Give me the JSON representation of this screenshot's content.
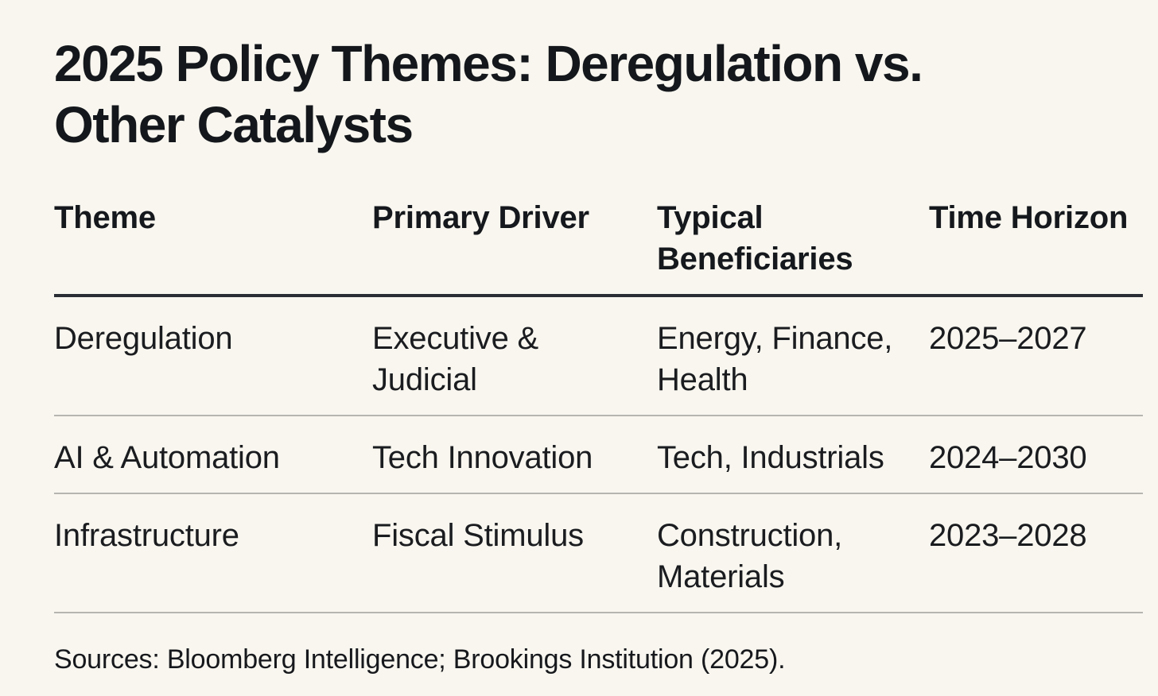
{
  "page": {
    "background_color": "#F8F6EF",
    "text_color": "#15181C",
    "header_rule_color": "#2A2D33",
    "row_rule_color": "#B7B5B0"
  },
  "chart_data": {
    "type": "table",
    "title": "2025 Policy Themes: Deregulation vs.\nOther Catalysts",
    "columns": [
      "Theme",
      "Primary Driver",
      "Typical\nBeneficiaries",
      "Time Horizon"
    ],
    "rows": [
      [
        "Deregulation",
        "Executive &\nJudicial",
        "Energy, Finance,\nHealth",
        "2025–2027"
      ],
      [
        "AI & Automation",
        "Tech Innovation",
        "Tech, Industrials",
        "2024–2030"
      ],
      [
        "Infrastructure",
        "Fiscal Stimulus",
        "Construction,\nMaterials",
        "2023–2028"
      ]
    ],
    "source_note": "Sources: Bloomberg Intelligence; Brookings Institution (2025)."
  }
}
